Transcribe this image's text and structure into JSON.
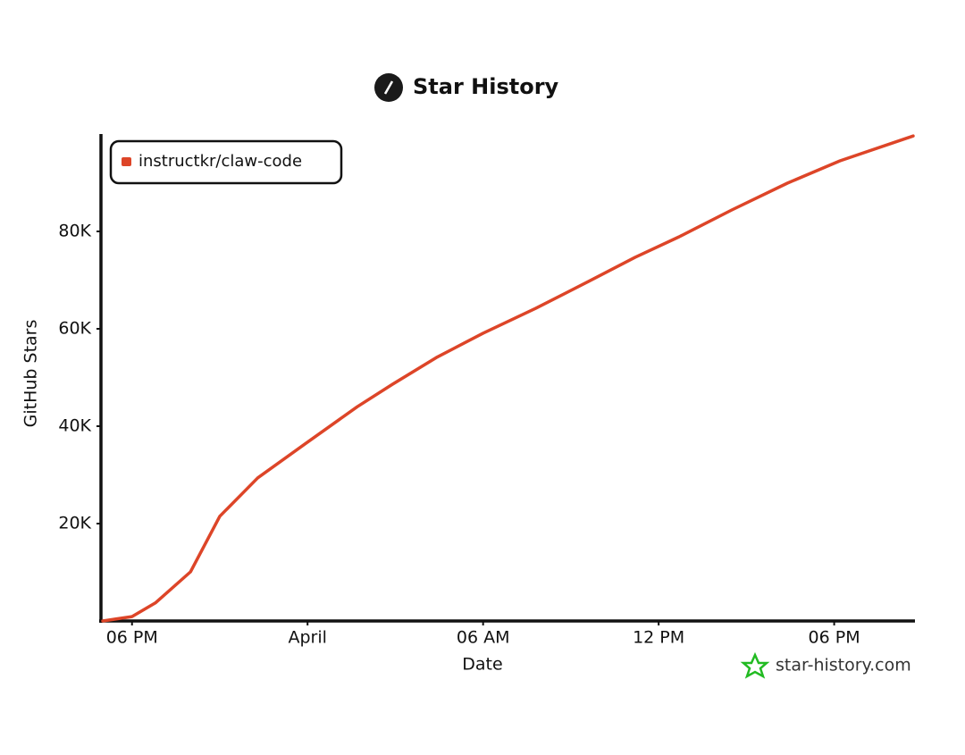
{
  "chart_data": {
    "type": "line",
    "title": "Star History",
    "x_label": "Date",
    "y_label": "GitHub Stars",
    "x": [
      17,
      18,
      18.8,
      20,
      21,
      22.3,
      23.9,
      25.7,
      26.9,
      28.4,
      30,
      31.8,
      33.6,
      35.2,
      36.7,
      38.5,
      40.4,
      42.2,
      44.7
    ],
    "series": [
      {
        "name": "instructkr/claw-code",
        "color": "#dd4528",
        "values": [
          0,
          900,
          3700,
          10100,
          21500,
          29400,
          36300,
          44000,
          48600,
          54100,
          59100,
          64200,
          69700,
          74700,
          78900,
          84400,
          89900,
          94500,
          99600
        ]
      }
    ],
    "xlim": [
      17,
      44.7
    ],
    "xticks": [
      {
        "value": 18,
        "label": "06 PM"
      },
      {
        "value": 24,
        "label": "April"
      },
      {
        "value": 30,
        "label": "06 AM"
      },
      {
        "value": 36,
        "label": "12 PM"
      },
      {
        "value": 42,
        "label": "06 PM"
      }
    ],
    "ylim": [
      0,
      100000
    ],
    "yticks": [
      {
        "value": 20000,
        "label": "20K"
      },
      {
        "value": 40000,
        "label": "40K"
      },
      {
        "value": 60000,
        "label": "60K"
      },
      {
        "value": 80000,
        "label": "80K"
      }
    ],
    "grid": false,
    "legend": "upper left",
    "watermark": "star-history.com"
  }
}
